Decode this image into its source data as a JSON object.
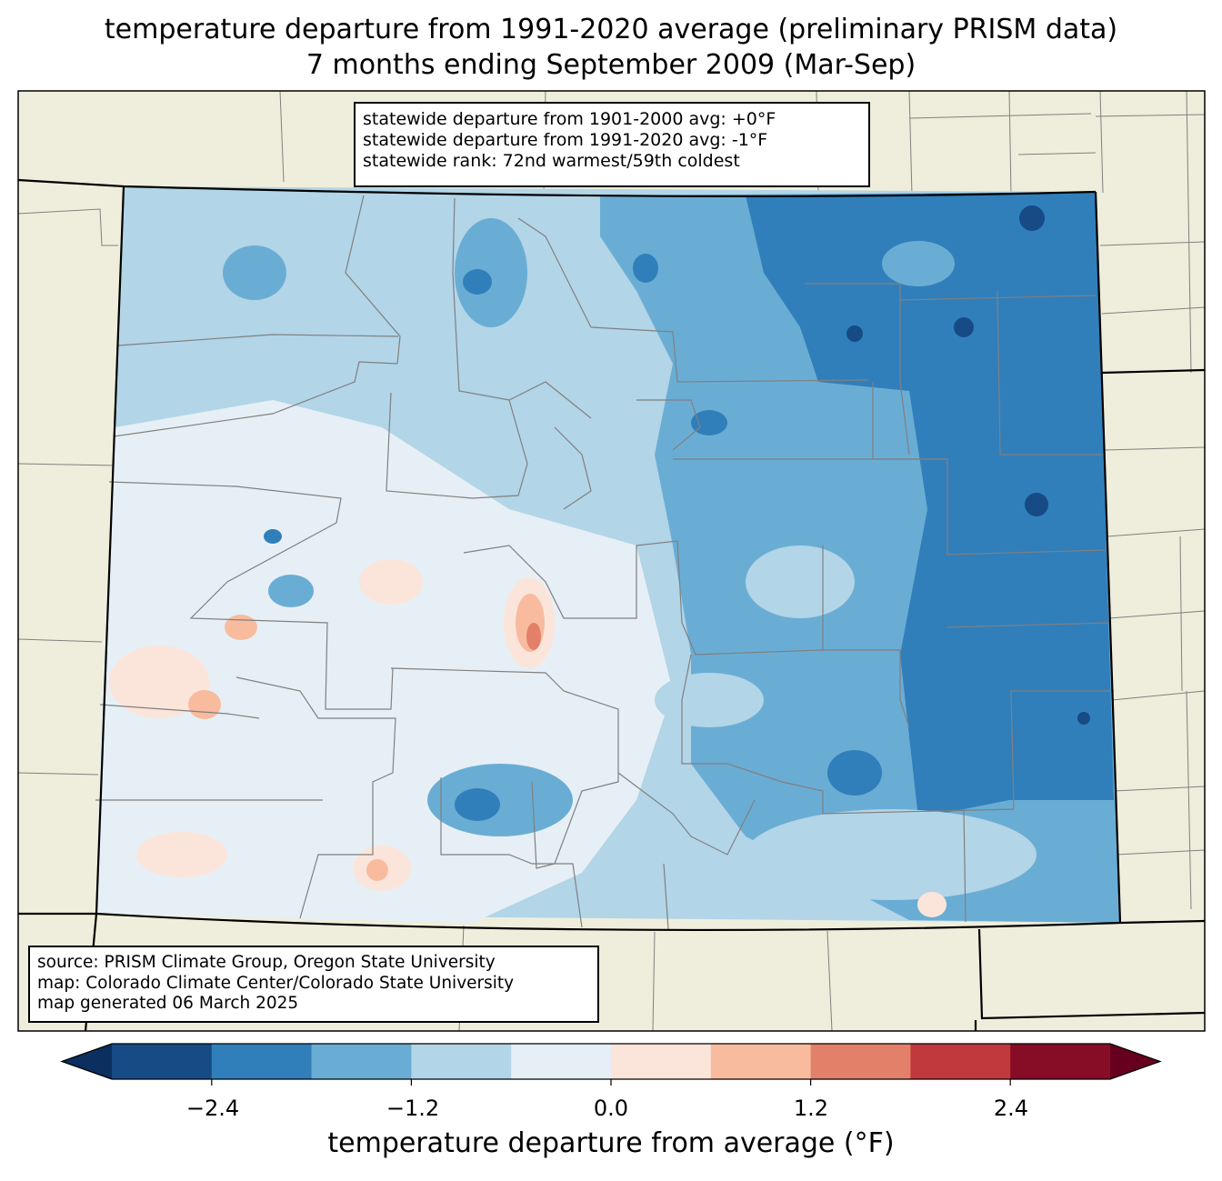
{
  "title_line1": "temperature departure from 1991-2020 average (preliminary PRISM data)",
  "title_line2": "7 months ending September 2009 (Mar-Sep)",
  "stats": {
    "line1": "statewide departure from 1901-2000 avg: +0°F",
    "line2": "statewide departure from 1991-2020 avg: -1°F",
    "line3": "statewide rank: 72nd warmest/59th coldest"
  },
  "source": {
    "line1": "source: PRISM Climate Group, Oregon State University",
    "line2": "map: Colorado Climate Center/Colorado State University",
    "line3": "map generated 06 March 2025"
  },
  "colorbar": {
    "label": "temperature departure from average (°F)",
    "ticks": [
      "−2.4",
      "−1.2",
      "0.0",
      "1.2",
      "2.4"
    ],
    "bins": [
      "#164b86",
      "#307fbb",
      "#6aadd4",
      "#b2d5e7",
      "#e6eff5",
      "#fbe5da",
      "#f8bb9e",
      "#e2806a",
      "#c0393c",
      "#870c26"
    ],
    "under_color": "#0b2f5e",
    "over_color": "#67001f"
  },
  "colors": {
    "land": "#efeedc",
    "border": "#000000",
    "county_lines": "#808080"
  }
}
